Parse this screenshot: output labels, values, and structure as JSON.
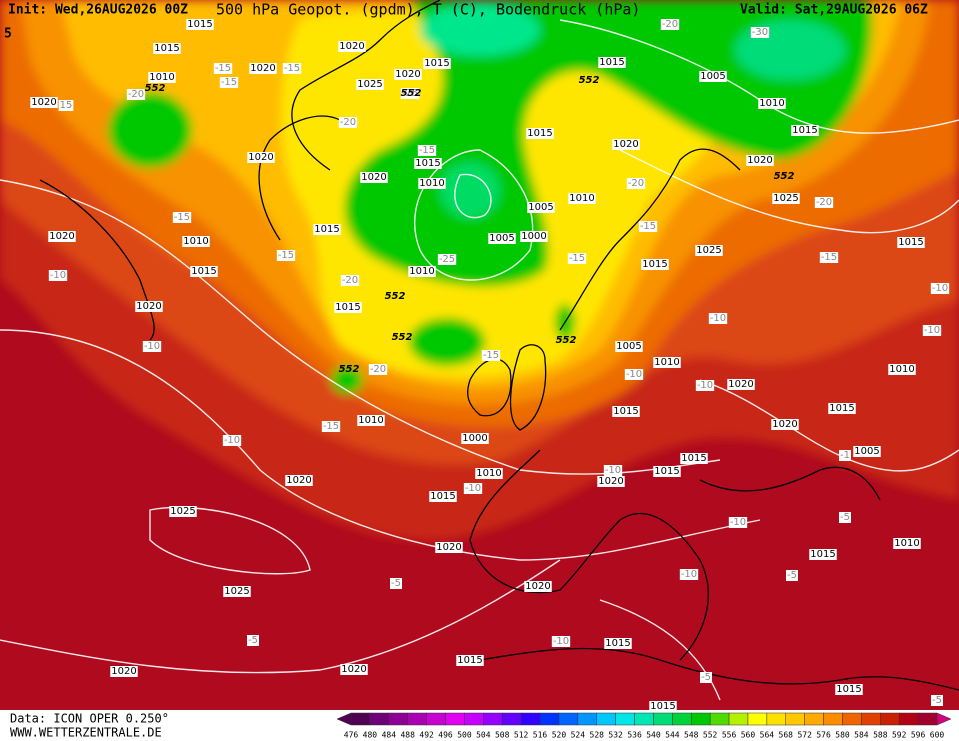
{
  "header": {
    "init": "Init: Wed,26AUG2026 00Z",
    "title": "500 hPa Geopot. (gpdm), T (C), Bodendruck (hPa)",
    "valid": "Valid: Sat,29AUG2026 06Z",
    "edge": "5"
  },
  "footer": {
    "data": "Data: ICON OPER 0.250°",
    "site": "WWW.WETTERZENTRALE.DE"
  },
  "legend": {
    "levels": [
      "476",
      "480",
      "484",
      "488",
      "492",
      "496",
      "500",
      "504",
      "508",
      "512",
      "516",
      "520",
      "524",
      "528",
      "532",
      "536",
      "540",
      "544",
      "548",
      "552",
      "556",
      "560",
      "564",
      "568",
      "572",
      "576",
      "580",
      "584",
      "588",
      "592",
      "596",
      "600"
    ]
  },
  "map": {
    "isobar_labels": [
      "1015",
      "1015",
      "1020",
      "1010",
      "1020",
      "1020",
      "1025",
      "1020",
      "1015",
      "1015",
      "1005",
      "1010",
      "1015",
      "1015",
      "1020",
      "1020",
      "1020",
      "1015",
      "1020",
      "1010",
      "1025",
      "1005",
      "1010",
      "1015",
      "1005",
      "1000",
      "1010",
      "1020",
      "1015",
      "1025",
      "1015",
      "1010",
      "1015",
      "1020",
      "1015",
      "1005",
      "1010",
      "1010",
      "1020",
      "1015",
      "1015",
      "1010",
      "1020",
      "1000",
      "1005",
      "1015",
      "1015",
      "1010",
      "1020",
      "1020",
      "1015",
      "1025",
      "1020",
      "1010",
      "1015",
      "1020",
      "1025",
      "1015",
      "1015",
      "1020",
      "1020",
      "1015",
      "1015"
    ],
    "temperature_labels": [
      "-20",
      "-30",
      "-20",
      "15",
      "-15",
      "-15",
      "-15",
      "-25",
      "-20",
      "-15",
      "-20",
      "-20",
      "-15",
      "-15",
      "-15",
      "-25",
      "-15",
      "-15",
      "-10",
      "-20",
      "-10",
      "-10",
      "-10",
      "-10",
      "-15",
      "-20",
      "-10",
      "-10",
      "-15",
      "-10",
      "-1",
      "-10",
      "-10",
      "-5",
      "-10",
      "-5",
      "-10",
      "-5",
      "-5",
      "-10",
      "-5",
      "-5"
    ],
    "height_labels": [
      "552",
      "552",
      "552",
      "552",
      "552",
      "552",
      "552",
      "552"
    ]
  }
}
